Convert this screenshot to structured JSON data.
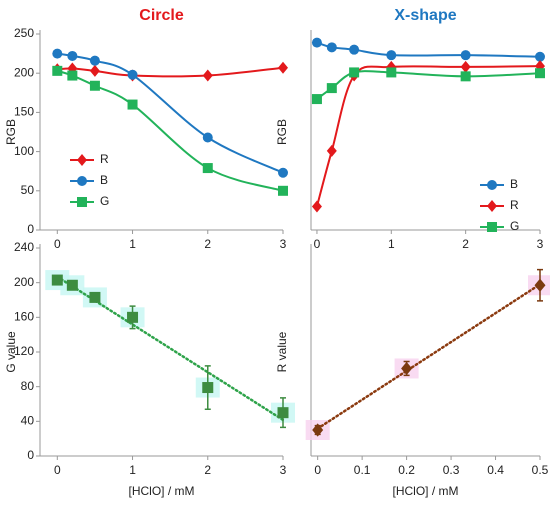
{
  "chart_data": [
    {
      "type": "line",
      "title": "Circle",
      "title_color": "#e3191c",
      "y_label": "RGB",
      "x": [
        0,
        0.2,
        0.5,
        1,
        2,
        3
      ],
      "xlim": [
        -0.23,
        3
      ],
      "xticks": [
        0,
        1,
        2,
        3
      ],
      "ylim": [
        0,
        250
      ],
      "yticks": [
        0,
        50,
        100,
        150,
        200,
        250
      ],
      "smooth": true,
      "legend": "lower left",
      "series": [
        {
          "name": "R",
          "color": "#e3191c",
          "marker": "diamond",
          "values": [
            205,
            206,
            203,
            197,
            197,
            207
          ]
        },
        {
          "name": "B",
          "color": "#1f78c1",
          "marker": "circle",
          "values": [
            225,
            222,
            216,
            198,
            118,
            73
          ]
        },
        {
          "name": "G",
          "color": "#22b35a",
          "marker": "square",
          "values": [
            203,
            197,
            184,
            160,
            79,
            50
          ]
        }
      ]
    },
    {
      "type": "line",
      "title": "X-shape",
      "title_color": "#1f78c1",
      "y_label": "RGB",
      "x": [
        0,
        0.2,
        0.5,
        1,
        2,
        3
      ],
      "xlim": [
        -0.08,
        3
      ],
      "xticks": [
        0,
        1,
        2,
        3
      ],
      "ylim": [
        0,
        250
      ],
      "smooth": true,
      "legend": "lower right",
      "series": [
        {
          "name": "B",
          "color": "#1f78c1",
          "marker": "circle",
          "values": [
            239,
            233,
            230,
            223,
            223,
            221
          ]
        },
        {
          "name": "R",
          "color": "#e3191c",
          "marker": "diamond",
          "values": [
            30,
            101,
            197,
            208,
            208,
            209
          ]
        },
        {
          "name": "G",
          "color": "#22b35a",
          "marker": "square",
          "values": [
            167,
            181,
            201,
            201,
            196,
            200
          ]
        }
      ]
    },
    {
      "type": "errorbar",
      "y_label": "G value",
      "x_label": "[HClO] / mM",
      "x": [
        0,
        0.2,
        0.5,
        1,
        2,
        3
      ],
      "xlim": [
        -0.23,
        3
      ],
      "xticks": [
        0,
        1,
        2,
        3
      ],
      "ylim": [
        0,
        240
      ],
      "yticks": [
        0,
        40,
        80,
        120,
        160,
        200,
        240
      ],
      "trendline": {
        "color": "#2ea34a"
      },
      "shadow_color": "#c6f6f2",
      "series": [
        {
          "color": "#3d8c40",
          "marker": "square",
          "values": [
            203,
            197,
            183,
            160,
            79,
            50
          ],
          "errors": [
            2,
            2,
            2,
            13,
            25,
            17
          ]
        }
      ]
    },
    {
      "type": "errorbar",
      "y_label": "R value",
      "x_label": "[HClO] / mM",
      "x": [
        0,
        0.2,
        0.5
      ],
      "xlim": [
        -0.015,
        0.5
      ],
      "xticks": [
        0,
        0.1,
        0.2,
        0.3,
        0.4,
        0.5
      ],
      "ylim": [
        0,
        240
      ],
      "trendline": {
        "color": "#8b3a0f"
      },
      "shadow_color": "#f8d2ef",
      "series": [
        {
          "color": "#7b3a10",
          "marker": "diamond",
          "values": [
            30,
            101,
            197
          ],
          "errors": [
            5,
            8,
            18
          ]
        }
      ]
    }
  ]
}
